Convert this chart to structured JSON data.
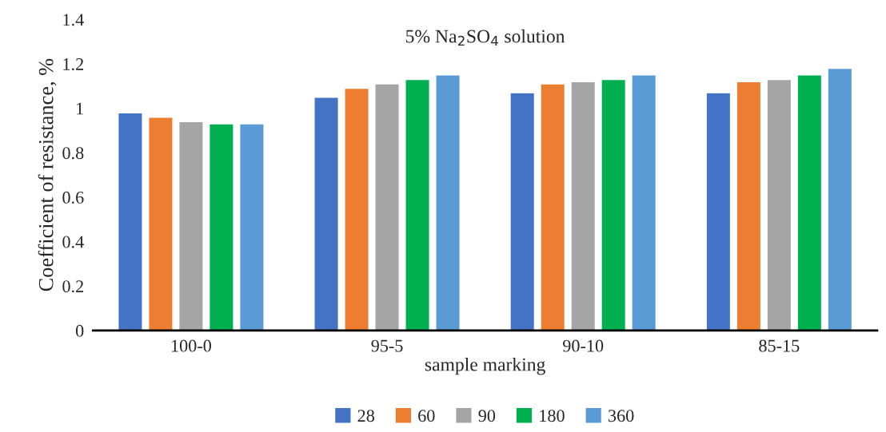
{
  "chart_data": {
    "type": "bar",
    "annotations": [
      "5% Na$_{2}$SO$_{4}$ solution"
    ],
    "xlabel": "sample marking",
    "ylabel": "Coefficient of resistance, %",
    "categories": [
      "100-0",
      "95-5",
      "90-10",
      "85-15"
    ],
    "series": [
      {
        "name": "28",
        "color": "#4472c4",
        "values": [
          0.98,
          1.05,
          1.07,
          1.07
        ]
      },
      {
        "name": "60",
        "color": "#ed7d31",
        "values": [
          0.96,
          1.09,
          1.11,
          1.12
        ]
      },
      {
        "name": "90",
        "color": "#a5a5a5",
        "values": [
          0.94,
          1.11,
          1.12,
          1.13
        ]
      },
      {
        "name": "180",
        "color": "#00b050",
        "values": [
          0.93,
          1.13,
          1.13,
          1.15
        ]
      },
      {
        "name": "360",
        "color": "#5b9bd5",
        "values": [
          0.93,
          1.15,
          1.15,
          1.18
        ]
      }
    ],
    "ylim": [
      0,
      1.4
    ],
    "yticks": [
      0,
      0.2,
      0.4,
      0.6,
      0.8,
      1,
      1.2,
      1.4
    ],
    "grid": false,
    "legend": "bottom"
  }
}
